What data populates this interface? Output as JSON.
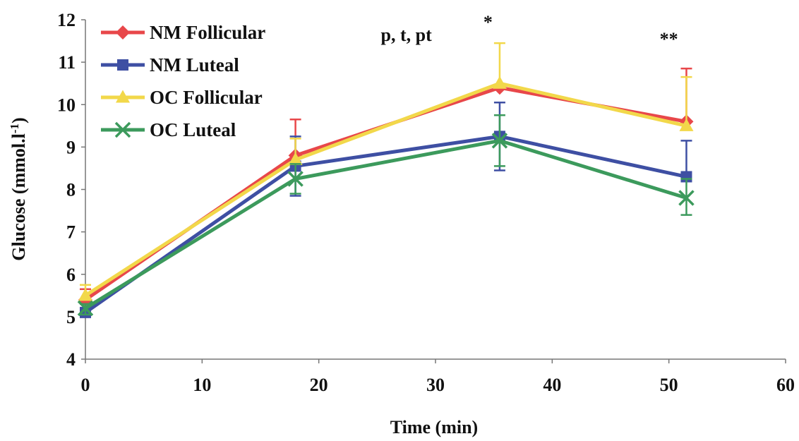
{
  "chart_data": {
    "type": "line",
    "xlabel": "Time (min)",
    "ylabel_main": "Glucose (mmol.l",
    "ylabel_sup": "-1",
    "ylabel_close": ")",
    "xlim": [
      0,
      60
    ],
    "ylim": [
      4,
      12
    ],
    "xticks": [
      "0",
      "10",
      "20",
      "30",
      "40",
      "50",
      "60"
    ],
    "yticks": [
      "4",
      "5",
      "6",
      "7",
      "8",
      "9",
      "10",
      "11",
      "12"
    ],
    "grid": false,
    "legend_position": "top-left",
    "x": [
      0,
      18,
      35.5,
      51.5
    ],
    "series": [
      {
        "name": "NM Follicular",
        "color": "#e8474a",
        "marker": "diamond",
        "values": [
          5.4,
          8.8,
          10.4,
          9.6
        ],
        "err_up": [
          0.25,
          0.85,
          0.0,
          1.25
        ],
        "err_down": [
          0.0,
          0.0,
          0.0,
          0.0
        ]
      },
      {
        "name": "NM Luteal",
        "color": "#3e4fa3",
        "marker": "square",
        "values": [
          5.1,
          8.55,
          9.25,
          8.3
        ],
        "err_up": [
          0.1,
          0.7,
          0.8,
          0.85
        ],
        "err_down": [
          0.1,
          0.7,
          0.8,
          0.0
        ]
      },
      {
        "name": "OC Follicular",
        "color": "#f2d84a",
        "marker": "triangle",
        "values": [
          5.5,
          8.7,
          10.5,
          9.5
        ],
        "err_up": [
          0.25,
          0.5,
          0.95,
          1.15
        ],
        "err_down": [
          0.0,
          0.0,
          0.0,
          0.0
        ]
      },
      {
        "name": "OC Luteal",
        "color": "#3c9a5c",
        "marker": "x",
        "values": [
          5.2,
          8.25,
          9.15,
          7.8
        ],
        "err_up": [
          0.1,
          0.35,
          0.6,
          0.45
        ],
        "err_down": [
          0.15,
          0.35,
          0.6,
          0.4
        ]
      }
    ],
    "annotations": [
      {
        "text": "p, t, pt",
        "x": 27.5,
        "y": 11.65
      },
      {
        "text": "*",
        "x": 34.5,
        "y": 11.95
      },
      {
        "text": "**",
        "x": 50,
        "y": 11.55
      }
    ]
  }
}
